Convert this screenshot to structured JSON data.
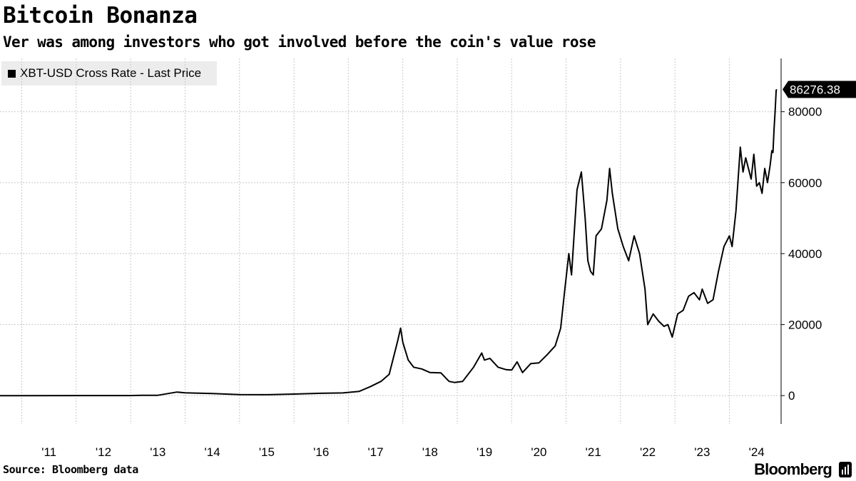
{
  "title": "Bitcoin Bonanza",
  "subtitle": "Ver was among investors who got involved before the coin's value rose",
  "legend": {
    "label": "XBT-USD Cross Rate - Last Price"
  },
  "source": "Source: Bloomberg data",
  "brand": "Bloomberg",
  "brand_icon": "bar-chart-icon",
  "colors": {
    "line": "#000000",
    "grid": "#c8c8c8",
    "legend_bg": "#ececec"
  },
  "chart_data": {
    "type": "line",
    "title": "Bitcoin Bonanza",
    "series_name": "XBT-USD Cross Rate - Last Price",
    "xlabel": "",
    "ylabel": "",
    "xlim": [
      2010.6,
      2024.95
    ],
    "ylim": [
      -8000,
      95000
    ],
    "y_ticks": [
      0,
      20000,
      40000,
      60000,
      80000
    ],
    "x_tick_labels": [
      "'11",
      "'12",
      "'13",
      "'14",
      "'15",
      "'16",
      "'17",
      "'18",
      "'19",
      "'20",
      "'21",
      "'22",
      "'23",
      "'24"
    ],
    "x_tick_years": [
      2011,
      2012,
      2013,
      2014,
      2015,
      2016,
      2017,
      2018,
      2019,
      2020,
      2021,
      2022,
      2023,
      2024
    ],
    "last_value_label": "86276.38",
    "x": [
      2010.6,
      2011.0,
      2012.0,
      2013.0,
      2013.2,
      2013.5,
      2013.85,
      2014.0,
      2014.5,
      2015.0,
      2015.5,
      2016.0,
      2016.5,
      2016.9,
      2017.2,
      2017.4,
      2017.6,
      2017.75,
      2017.9,
      2017.96,
      2018.0,
      2018.1,
      2018.2,
      2018.35,
      2018.5,
      2018.7,
      2018.85,
      2018.95,
      2019.1,
      2019.3,
      2019.45,
      2019.5,
      2019.6,
      2019.75,
      2019.9,
      2020.0,
      2020.1,
      2020.2,
      2020.35,
      2020.5,
      2020.65,
      2020.8,
      2020.9,
      2020.97,
      2021.05,
      2021.1,
      2021.2,
      2021.28,
      2021.35,
      2021.4,
      2021.45,
      2021.5,
      2021.55,
      2021.65,
      2021.75,
      2021.8,
      2021.85,
      2021.95,
      2022.05,
      2022.15,
      2022.25,
      2022.35,
      2022.45,
      2022.5,
      2022.6,
      2022.7,
      2022.8,
      2022.87,
      2022.95,
      2023.05,
      2023.15,
      2023.25,
      2023.35,
      2023.45,
      2023.5,
      2023.6,
      2023.7,
      2023.8,
      2023.9,
      2024.0,
      2024.05,
      2024.12,
      2024.2,
      2024.25,
      2024.3,
      2024.4,
      2024.45,
      2024.5,
      2024.55,
      2024.6,
      2024.65,
      2024.7,
      2024.75,
      2024.78,
      2024.8,
      2024.82,
      2024.84,
      2024.86,
      2024.87
    ],
    "y": [
      0,
      1,
      5,
      15,
      100,
      100,
      1000,
      800,
      600,
      300,
      250,
      430,
      650,
      750,
      1200,
      2500,
      4000,
      6000,
      15000,
      19000,
      15000,
      10000,
      8000,
      7500,
      6500,
      6400,
      4000,
      3700,
      4000,
      8000,
      12000,
      10000,
      10500,
      8000,
      7300,
      7200,
      9500,
      6500,
      9000,
      9200,
      11500,
      14000,
      19000,
      29000,
      40000,
      34000,
      58000,
      63000,
      50000,
      38000,
      35000,
      34000,
      45000,
      47000,
      55000,
      64000,
      57000,
      47000,
      42000,
      38000,
      45000,
      40000,
      30000,
      20000,
      23000,
      21000,
      19500,
      20000,
      16500,
      23000,
      24000,
      28000,
      29000,
      27000,
      30000,
      26000,
      27000,
      35000,
      42000,
      45000,
      42000,
      52000,
      70000,
      63000,
      67000,
      61000,
      68000,
      59000,
      60000,
      57000,
      64000,
      60000,
      65000,
      69000,
      68500,
      75000,
      80000,
      86000,
      86276.38
    ]
  }
}
